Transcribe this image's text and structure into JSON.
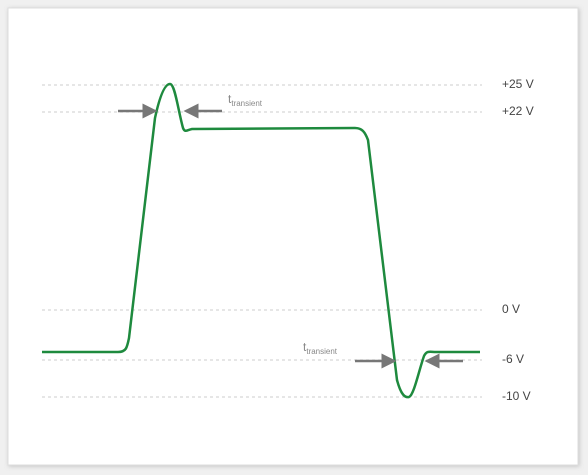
{
  "levels": [
    "+25 V",
    "+22 V",
    "0 V",
    "-6 V",
    "-10 V"
  ],
  "annotations": [
    {
      "symbol": "t",
      "subscript": "transient"
    },
    {
      "symbol": "t",
      "subscript": "transient"
    }
  ]
}
